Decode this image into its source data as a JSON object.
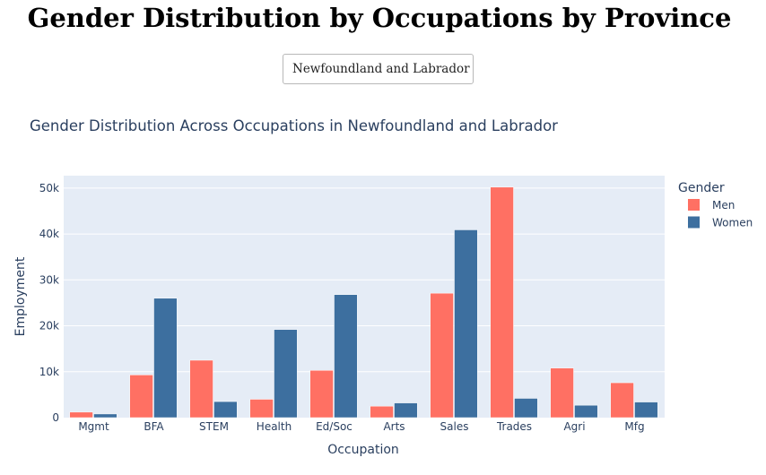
{
  "page": {
    "title": "Gender Distribution by Occupations by Province",
    "province_select": {
      "value": "Newfoundland and Labrador"
    }
  },
  "chart_data": {
    "type": "bar",
    "title": "Gender Distribution Across Occupations in Newfoundland and Labrador",
    "xlabel": "Occupation",
    "ylabel": "Employment",
    "categories": [
      "Mgmt",
      "BFA",
      "STEM",
      "Health",
      "Ed/Soc",
      "Arts",
      "Sales",
      "Trades",
      "Agri",
      "Mfg"
    ],
    "series": [
      {
        "name": "Men",
        "color": "#ff7063",
        "values": [
          1200,
          9300,
          12500,
          4000,
          10300,
          2500,
          27100,
          50200,
          10800,
          7600
        ]
      },
      {
        "name": "Women",
        "color": "#3d6f9f",
        "values": [
          800,
          26000,
          3500,
          19200,
          26800,
          3200,
          40900,
          4200,
          2700,
          3400
        ]
      }
    ],
    "ylim": [
      0,
      52700
    ],
    "yticks": [
      0,
      10000,
      20000,
      30000,
      40000,
      50000
    ],
    "ytick_labels": [
      "0",
      "10k",
      "20k",
      "30k",
      "40k",
      "50k"
    ],
    "grid": true,
    "legend": {
      "title": "Gender",
      "position": "right"
    },
    "plot_background": "#e5ecf6"
  }
}
